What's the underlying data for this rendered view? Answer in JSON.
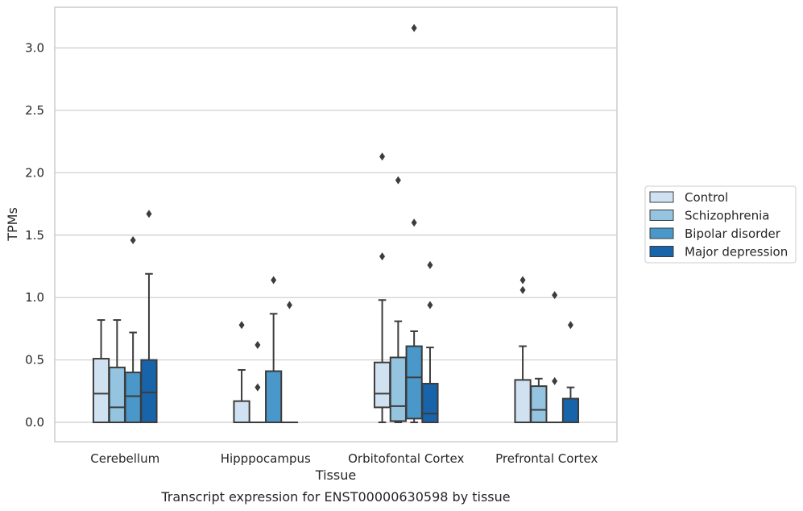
{
  "caption": "Transcript expression for ENST00000630598 by tissue",
  "chart_data": {
    "type": "box",
    "xlabel": "Tissue",
    "ylabel": "TPMs",
    "ylim": [
      -0.15,
      3.32
    ],
    "yticks": [
      0.0,
      0.5,
      1.0,
      1.5,
      2.0,
      2.5,
      3.0
    ],
    "ytick_labels": [
      "0.0",
      "0.5",
      "1.0",
      "1.5",
      "2.0",
      "2.5",
      "3.0"
    ],
    "grid": "horizontal",
    "legend_position": "right",
    "categories": [
      "Cerebellum",
      "Hipppocampus",
      "Orbitofontal Cortex",
      "Prefrontal Cortex"
    ],
    "series": [
      {
        "name": "Control",
        "color": "#d0e1f2",
        "boxes": [
          {
            "whislo": 0.0,
            "q1": 0.0,
            "med": 0.23,
            "q3": 0.51,
            "whishi": 0.82,
            "fliers": []
          },
          {
            "whislo": 0.0,
            "q1": 0.0,
            "med": 0.0,
            "q3": 0.17,
            "whishi": 0.42,
            "fliers": [
              0.78
            ]
          },
          {
            "whislo": 0.0,
            "q1": 0.12,
            "med": 0.23,
            "q3": 0.48,
            "whishi": 0.98,
            "fliers": [
              1.33,
              2.13
            ]
          },
          {
            "whislo": 0.0,
            "q1": 0.0,
            "med": 0.0,
            "q3": 0.34,
            "whishi": 0.61,
            "fliers": [
              1.06,
              1.14
            ]
          }
        ]
      },
      {
        "name": "Schizophrenia",
        "color": "#94c4df",
        "boxes": [
          {
            "whislo": 0.0,
            "q1": 0.0,
            "med": 0.12,
            "q3": 0.44,
            "whishi": 0.82,
            "fliers": []
          },
          {
            "whislo": 0.0,
            "q1": 0.0,
            "med": 0.0,
            "q3": 0.0,
            "whishi": 0.0,
            "fliers": [
              0.28,
              0.62
            ]
          },
          {
            "whislo": 0.0,
            "q1": 0.01,
            "med": 0.13,
            "q3": 0.52,
            "whishi": 0.81,
            "fliers": [
              1.94
            ]
          },
          {
            "whislo": 0.0,
            "q1": 0.0,
            "med": 0.1,
            "q3": 0.29,
            "whishi": 0.35,
            "fliers": []
          }
        ]
      },
      {
        "name": "Bipolar disorder",
        "color": "#4a98c9",
        "boxes": [
          {
            "whislo": 0.0,
            "q1": 0.0,
            "med": 0.21,
            "q3": 0.4,
            "whishi": 0.72,
            "fliers": [
              1.46
            ]
          },
          {
            "whislo": 0.0,
            "q1": 0.0,
            "med": 0.0,
            "q3": 0.41,
            "whishi": 0.87,
            "fliers": [
              1.14
            ]
          },
          {
            "whislo": 0.0,
            "q1": 0.03,
            "med": 0.36,
            "q3": 0.61,
            "whishi": 0.73,
            "fliers": [
              1.6,
              3.16
            ]
          },
          {
            "whislo": 0.0,
            "q1": 0.0,
            "med": 0.0,
            "q3": 0.0,
            "whishi": 0.0,
            "fliers": [
              0.33,
              1.02
            ]
          }
        ]
      },
      {
        "name": "Major depression",
        "color": "#1764ab",
        "boxes": [
          {
            "whislo": 0.0,
            "q1": 0.0,
            "med": 0.24,
            "q3": 0.5,
            "whishi": 1.19,
            "fliers": [
              1.67
            ]
          },
          {
            "whislo": 0.0,
            "q1": 0.0,
            "med": 0.0,
            "q3": 0.0,
            "whishi": 0.0,
            "fliers": [
              0.94
            ]
          },
          {
            "whislo": 0.0,
            "q1": 0.0,
            "med": 0.07,
            "q3": 0.31,
            "whishi": 0.6,
            "fliers": [
              0.94,
              1.26
            ]
          },
          {
            "whislo": 0.0,
            "q1": 0.0,
            "med": 0.0,
            "q3": 0.19,
            "whishi": 0.28,
            "fliers": [
              0.78
            ]
          }
        ]
      }
    ]
  }
}
